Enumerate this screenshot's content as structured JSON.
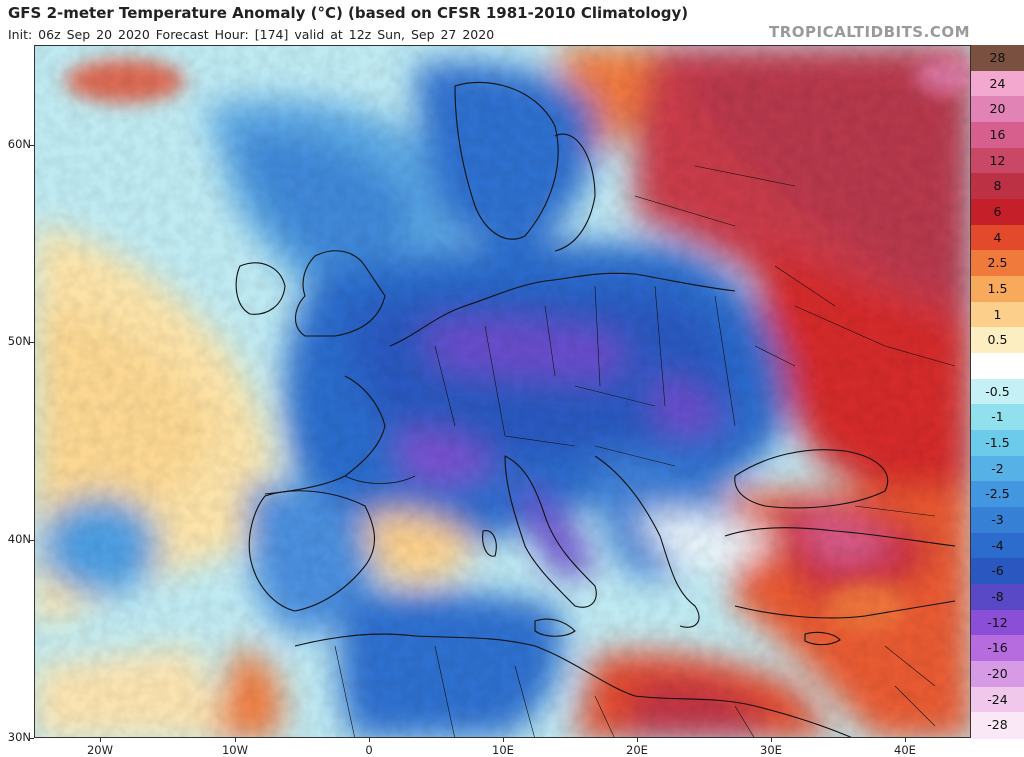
{
  "header": {
    "title": "GFS 2-meter Temperature Anomaly (°C) (based on CFSR 1981-2010 Climatology)",
    "subtitle": "Init: 06z Sep 20 2020   Forecast Hour: [174]   valid at 12z Sun, Sep 27 2020",
    "brand": "TROPICALTIDBITS.COM"
  },
  "axes": {
    "latitude_labels": [
      "60N",
      "50N",
      "40N",
      "30N"
    ],
    "longitude_labels": [
      "20W",
      "10W",
      "0",
      "10E",
      "20E",
      "30E",
      "40E"
    ]
  },
  "colorbar": {
    "levels": [
      {
        "label": "28",
        "color": "#7a5040"
      },
      {
        "label": "24",
        "color": "#f2a8cf"
      },
      {
        "label": "20",
        "color": "#e184b5"
      },
      {
        "label": "16",
        "color": "#d65f8e"
      },
      {
        "label": "12",
        "color": "#c94866"
      },
      {
        "label": "8",
        "color": "#bd3145"
      },
      {
        "label": "6",
        "color": "#c51f29"
      },
      {
        "label": "4",
        "color": "#e24a2b"
      },
      {
        "label": "2.5",
        "color": "#f07a3c"
      },
      {
        "label": "1.5",
        "color": "#f8aa5c"
      },
      {
        "label": "1",
        "color": "#fcd08b"
      },
      {
        "label": "0.5",
        "color": "#fdeec2"
      },
      {
        "label": "",
        "color": "#ffffff"
      },
      {
        "label": "-0.5",
        "color": "#c5f1f6"
      },
      {
        "label": "-1",
        "color": "#91e0ee"
      },
      {
        "label": "-1.5",
        "color": "#6ccbea"
      },
      {
        "label": "-2",
        "color": "#56b2e6"
      },
      {
        "label": "-2.5",
        "color": "#4397e0"
      },
      {
        "label": "-3",
        "color": "#3680d6"
      },
      {
        "label": "-4",
        "color": "#2b6ccc"
      },
      {
        "label": "-6",
        "color": "#2a58c0"
      },
      {
        "label": "-8",
        "color": "#5a49c6"
      },
      {
        "label": "-12",
        "color": "#8b4ed6"
      },
      {
        "label": "-16",
        "color": "#b66cdf"
      },
      {
        "label": "-20",
        "color": "#d79be6"
      },
      {
        "label": "-24",
        "color": "#f0c8ec"
      },
      {
        "label": "-28",
        "color": "#fbe8f6"
      }
    ]
  }
}
